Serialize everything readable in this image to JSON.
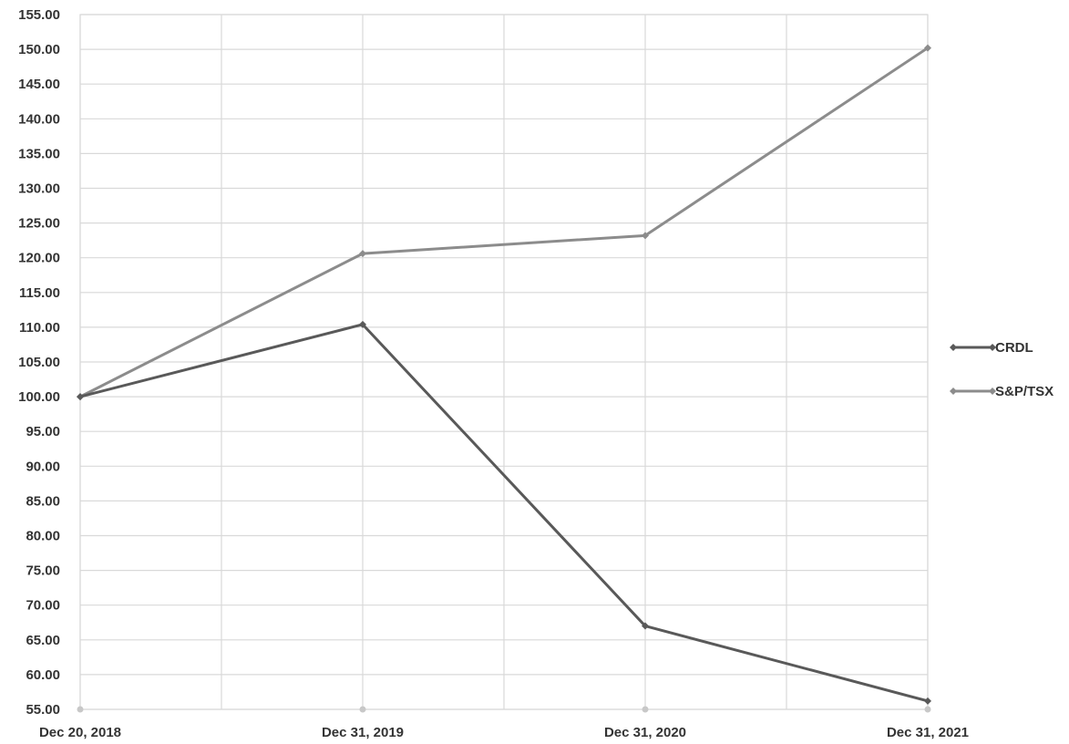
{
  "chart_data": {
    "type": "line",
    "categories": [
      "Dec 20, 2018",
      "Dec 31, 2019",
      "Dec 31, 2020",
      "Dec 31, 2021"
    ],
    "series": [
      {
        "name": "CRDL",
        "values": [
          100.0,
          110.4,
          67.0,
          56.2
        ],
        "color": "#595959"
      },
      {
        "name": "S&P/TSX",
        "values": [
          100.0,
          120.6,
          123.2,
          150.2
        ],
        "color": "#8c8c8c"
      }
    ],
    "ylim": [
      55,
      155
    ],
    "ytick_step": 5,
    "ytick_labels": [
      "55.00",
      "60.00",
      "65.00",
      "70.00",
      "75.00",
      "80.00",
      "85.00",
      "90.00",
      "95.00",
      "100.00",
      "105.00",
      "110.00",
      "115.00",
      "120.00",
      "125.00",
      "130.00",
      "135.00",
      "140.00",
      "145.00",
      "150.00",
      "155.00"
    ],
    "grid": true,
    "legend_position": "right",
    "title": "",
    "xlabel": "",
    "ylabel": ""
  }
}
